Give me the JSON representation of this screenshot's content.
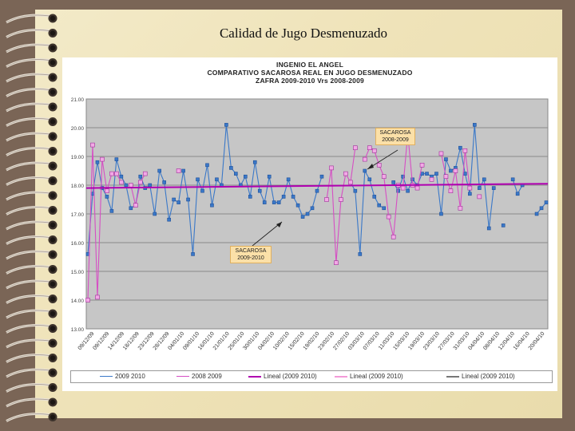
{
  "slide": {
    "title": "Calidad de Jugo Desmenuzado"
  },
  "chart_data": {
    "type": "line",
    "header": {
      "line1": "INGENIO EL ANGEL",
      "line2": "COMPARATIVO SACAROSA REAL EN JUGO DESMENUZADO",
      "line3": "ZAFRA 2009-2010 Vrs 2008-2009"
    },
    "ylim": [
      13.0,
      21.0
    ],
    "ytick_labels": [
      "21.00",
      "20.00",
      "19.00",
      "18.00",
      "17.00",
      "16.00",
      "15.00",
      "14.00",
      "13.00"
    ],
    "ytick_values": [
      21,
      20,
      19,
      18,
      17,
      16,
      15,
      14,
      13
    ],
    "x_tick_labels": [
      "09/12/09",
      "09/12/09",
      "14/12/09",
      "18/12/09",
      "23/12/09",
      "28/12/09",
      "04/01/10",
      "09/01/10",
      "16/01/10",
      "21/01/10",
      "25/01/10",
      "30/01/10",
      "04/02/10",
      "10/02/10",
      "15/02/10",
      "19/02/10",
      "23/02/10",
      "27/02/10",
      "03/03/10",
      "07/03/10",
      "11/03/10",
      "15/03/10",
      "19/03/10",
      "23/03/10",
      "27/03/10",
      "31/03/10",
      "04/04/10",
      "08/04/10",
      "12/04/10",
      "16/04/10",
      "20/04/10"
    ],
    "grid": true,
    "series": [
      {
        "name": "2009 2010",
        "color": "#3a78c8",
        "marker": "square",
        "values": [
          15.6,
          17.7,
          18.8,
          17.9,
          17.6,
          17.1,
          18.9,
          18.3,
          18.0,
          17.2,
          17.3,
          18.3,
          17.9,
          18.0,
          17.0,
          18.5,
          18.1,
          16.8,
          17.5,
          17.4,
          18.5,
          17.5,
          15.6,
          18.2,
          17.8,
          18.7,
          17.3,
          18.2,
          18.0,
          20.1,
          18.6,
          18.4,
          18.0,
          18.3,
          17.6,
          18.8,
          17.8,
          17.4,
          18.3,
          17.4,
          17.4,
          17.6,
          18.2,
          17.6,
          17.3,
          16.9,
          17.0,
          17.2,
          17.8,
          18.3,
          null,
          null,
          null,
          null,
          null,
          18.1,
          17.8,
          15.6,
          18.5,
          18.2,
          17.6,
          17.3,
          17.2,
          null,
          18.1,
          17.8,
          18.3,
          17.8,
          18.2,
          18.0,
          18.4,
          18.4,
          18.3,
          18.4,
          17.0,
          18.9,
          18.5,
          18.6,
          19.3,
          18.4,
          17.7,
          20.1,
          17.9,
          18.2,
          16.5,
          17.9,
          null,
          16.6,
          null,
          18.2,
          17.7,
          18.0,
          null,
          null,
          17.0,
          17.2,
          17.4
        ],
        "x_index": [
          0,
          1,
          2,
          3,
          4,
          5,
          6,
          7,
          8,
          9,
          10,
          11,
          12,
          13,
          14,
          15,
          16,
          17,
          18,
          19,
          20,
          21,
          22,
          23,
          24,
          25,
          26,
          27,
          28,
          29,
          30,
          31,
          32,
          33,
          34,
          35,
          36,
          37,
          38,
          39,
          40,
          41,
          42,
          43,
          44,
          45,
          46,
          47,
          48,
          49,
          50,
          51,
          52,
          53,
          54,
          55,
          56,
          57,
          58,
          59,
          60,
          61,
          62,
          63,
          64,
          65,
          66,
          67,
          68,
          69,
          70,
          71,
          72,
          73,
          74,
          75,
          76,
          77,
          78,
          79,
          80,
          81,
          82,
          83,
          84,
          85,
          86,
          87,
          88,
          89,
          90,
          91,
          92,
          93,
          94,
          95,
          96
        ]
      },
      {
        "name": "2008 2009",
        "color": "#d64fc4",
        "marker": "square",
        "values": [
          14.0,
          19.4,
          14.1,
          18.9,
          17.8,
          18.4,
          18.4,
          18.1,
          null,
          18.0,
          17.3,
          18.1,
          18.4,
          null,
          null,
          null,
          null,
          null,
          null,
          18.5,
          null,
          null,
          null,
          null,
          null,
          null,
          null,
          null,
          null,
          null,
          null,
          null,
          null,
          null,
          null,
          null,
          null,
          null,
          null,
          null,
          null,
          null,
          null,
          null,
          null,
          null,
          null,
          null,
          null,
          null,
          17.5,
          18.6,
          15.3,
          17.5,
          18.4,
          18.1,
          19.3,
          null,
          18.9,
          19.3,
          19.2,
          18.7,
          18.3,
          16.9,
          16.2,
          18.0,
          17.9,
          19.8,
          18.0,
          17.9,
          18.7,
          null,
          18.2,
          null,
          19.1,
          18.3,
          17.8,
          18.5,
          17.2,
          19.2,
          17.9,
          null,
          17.6,
          null,
          null,
          null,
          null,
          null,
          null,
          null,
          null,
          null,
          null,
          null,
          null,
          null,
          null
        ],
        "x_index": [
          0,
          1,
          2,
          3,
          4,
          5,
          6,
          7,
          8,
          9,
          10,
          11,
          12,
          13,
          14,
          15,
          16,
          17,
          18,
          19,
          20,
          21,
          22,
          23,
          24,
          25,
          26,
          27,
          28,
          29,
          30,
          31,
          32,
          33,
          34,
          35,
          36,
          37,
          38,
          39,
          40,
          41,
          42,
          43,
          44,
          45,
          46,
          47,
          48,
          49,
          50,
          51,
          52,
          53,
          54,
          55,
          56,
          57,
          58,
          59,
          60,
          61,
          62,
          63,
          64,
          65,
          66,
          67,
          68,
          69,
          70,
          71,
          72,
          73,
          74,
          75,
          76,
          77,
          78,
          79,
          80,
          81,
          82,
          83,
          84,
          85,
          86,
          87,
          88,
          89,
          90,
          91,
          92,
          93,
          94,
          95,
          96
        ]
      }
    ],
    "trendlines": [
      {
        "name": "Lineal (2009 2010)",
        "color": "#b000b0",
        "start": 17.9,
        "end": 18.05
      }
    ],
    "legend": [
      {
        "label": "2009 2010",
        "color": "#3a78c8",
        "kind": "marker"
      },
      {
        "label": "2008 2009",
        "color": "#d64fc4",
        "kind": "marker"
      },
      {
        "label": "Lineal (2009 2010)",
        "color": "#b000b0",
        "kind": "line"
      },
      {
        "label": "Lineal (2009 2010)",
        "color": "#f39ad8",
        "kind": "line"
      },
      {
        "label": "Lineal (2009 2010)",
        "color": "#777777",
        "kind": "line"
      }
    ],
    "annotations": [
      {
        "text1": "SACAROSA",
        "text2": "2008-2009"
      },
      {
        "text1": "SACAROSA",
        "text2": "2009-2010"
      }
    ]
  }
}
